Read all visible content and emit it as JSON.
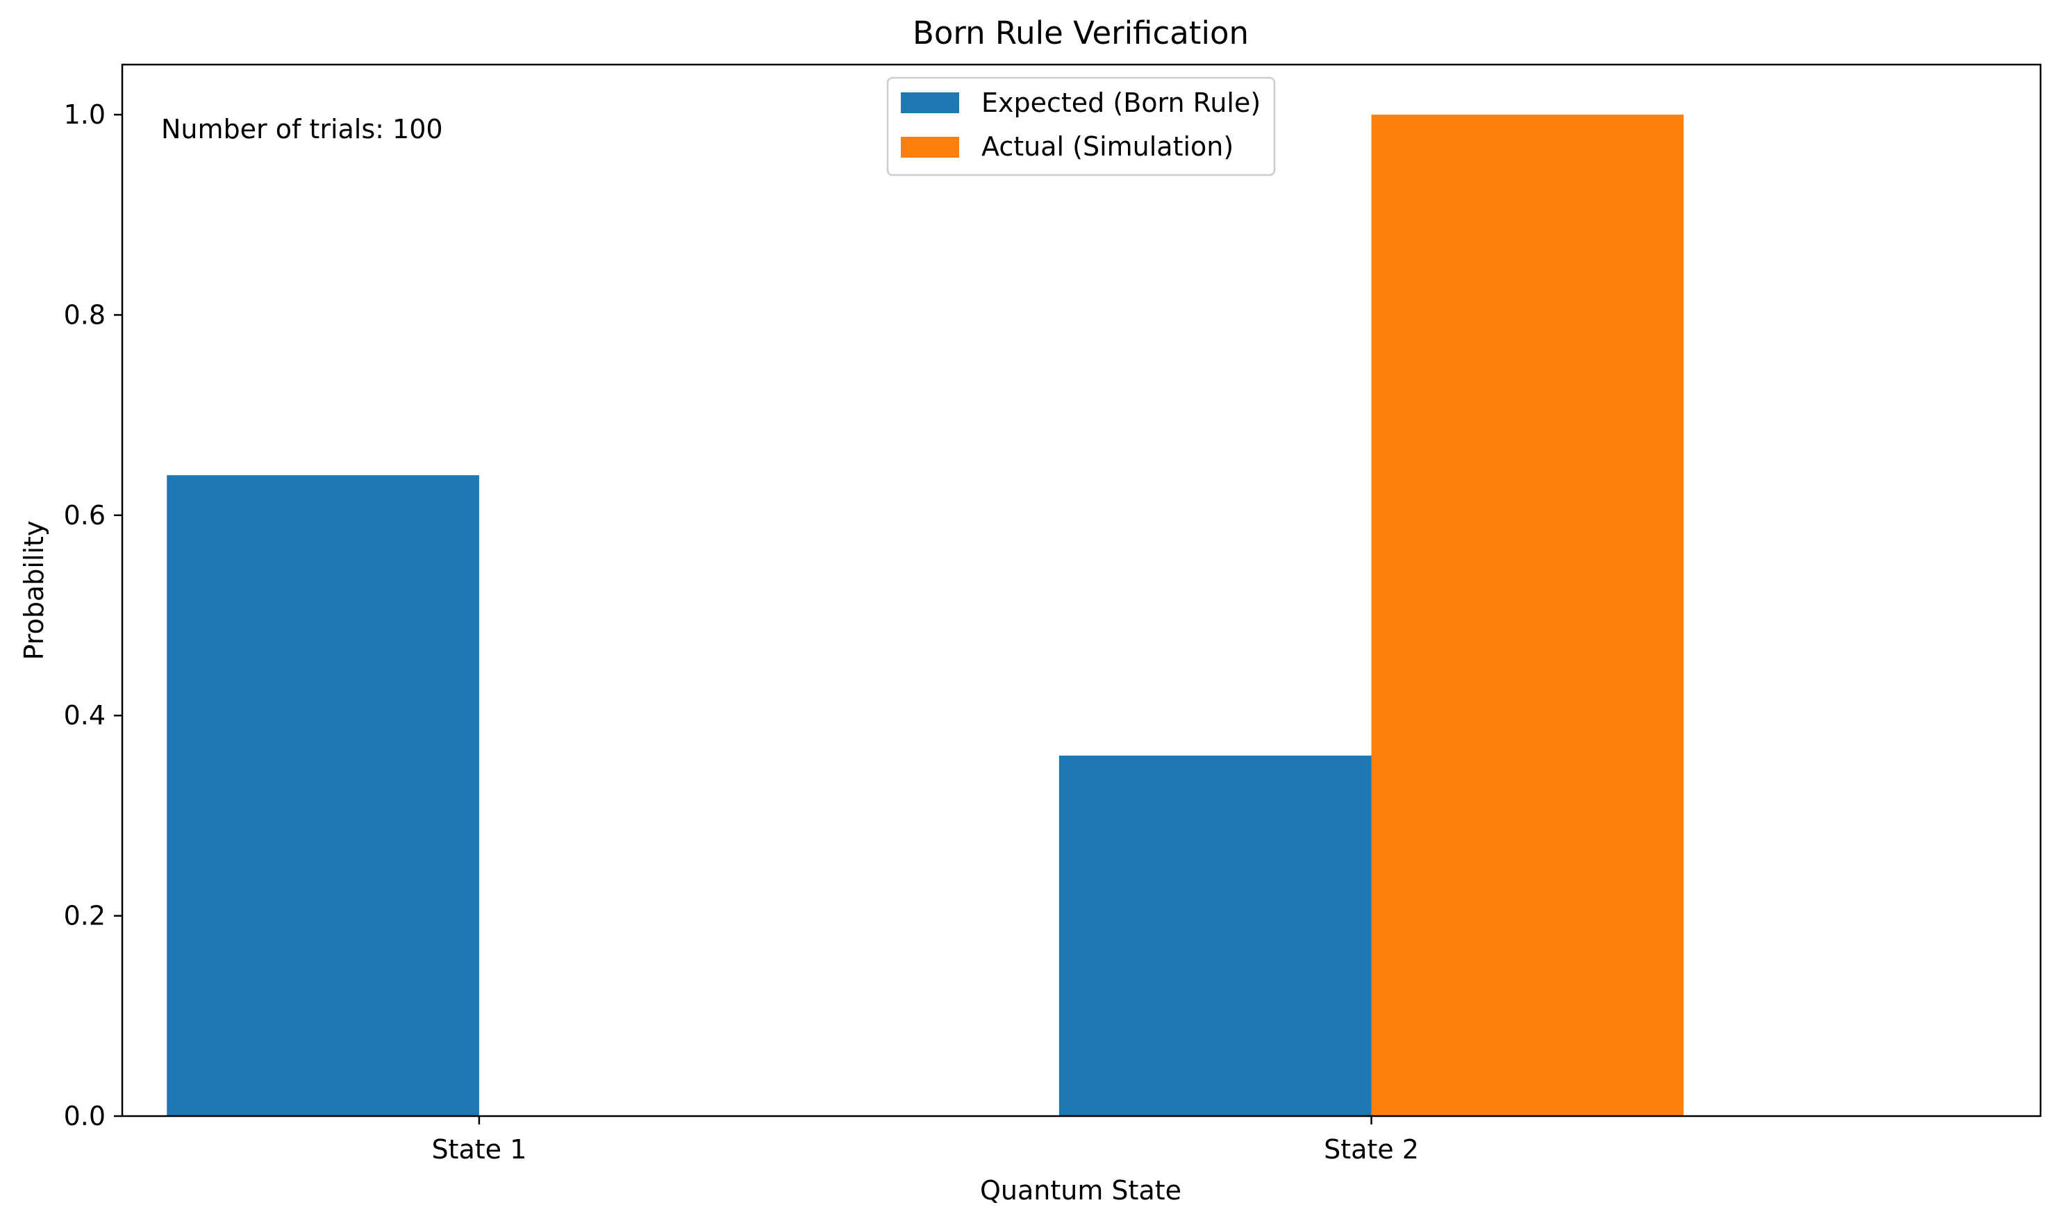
{
  "chart_data": {
    "type": "bar",
    "title": "Born Rule Verification",
    "xlabel": "Quantum State",
    "ylabel": "Probability",
    "categories": [
      "State 1",
      "State 2"
    ],
    "series": [
      {
        "name": "Expected (Born Rule)",
        "color": "#1f77b4",
        "values": [
          0.64,
          0.36
        ]
      },
      {
        "name": "Actual (Simulation)",
        "color": "#ff7f0e",
        "values": [
          0.0,
          1.0
        ]
      }
    ],
    "ylim": [
      0,
      1.05
    ],
    "yticks": [
      0.0,
      0.2,
      0.4,
      0.6,
      0.8,
      1.0
    ],
    "ytick_labels": [
      "0.0",
      "0.2",
      "0.4",
      "0.6",
      "0.8",
      "1.0"
    ],
    "grid": false,
    "legend_position": "top-center",
    "annotation": "Number of trials: 100"
  }
}
